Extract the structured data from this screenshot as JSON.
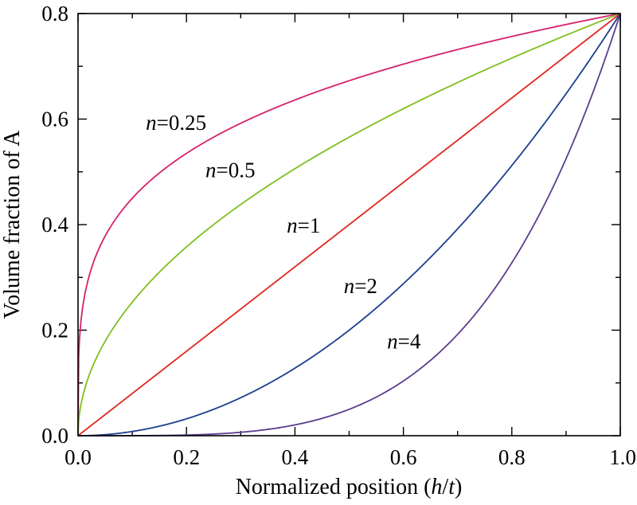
{
  "chart_data": {
    "type": "line",
    "xlabel": {
      "prefix": "Normalized position (",
      "var1": "h",
      "sep": "/",
      "var2": "t",
      "suffix": ")"
    },
    "ylabel": "Volume fraction of A",
    "xlim": [
      0,
      1
    ],
    "ylim": [
      0,
      0.8
    ],
    "x_ticks": [
      "0.0",
      "0.2",
      "0.4",
      "0.6",
      "0.8",
      "1.0"
    ],
    "y_ticks": [
      "0.0",
      "0.2",
      "0.4",
      "0.6",
      "0.8"
    ],
    "x_tick_values": [
      0,
      0.2,
      0.4,
      0.6,
      0.8,
      1.0
    ],
    "y_tick_values": [
      0,
      0.2,
      0.4,
      0.6,
      0.8
    ],
    "x_minor_step": 0.1,
    "y_minor_step": 0.1,
    "grid": false,
    "formula": "y = 0.8 * x^n",
    "series": [
      {
        "n_var": "n",
        "n_value": "=0.25",
        "exponent": 0.25,
        "color": "#d6206e",
        "label_at": [
          0.125,
          0.58
        ]
      },
      {
        "n_var": "n",
        "n_value": "=0.5",
        "exponent": 0.5,
        "color": "#7fbf1f",
        "label_at": [
          0.235,
          0.49
        ]
      },
      {
        "n_var": "n",
        "n_value": "=1",
        "exponent": 1,
        "color": "#e0261f",
        "label_at": [
          0.385,
          0.385
        ]
      },
      {
        "n_var": "n",
        "n_value": "=2",
        "exponent": 2,
        "color": "#1c3f8f",
        "label_at": [
          0.49,
          0.27
        ]
      },
      {
        "n_var": "n",
        "n_value": "=4",
        "exponent": 4,
        "color": "#5b3d8f",
        "label_at": [
          0.57,
          0.165
        ]
      }
    ]
  }
}
